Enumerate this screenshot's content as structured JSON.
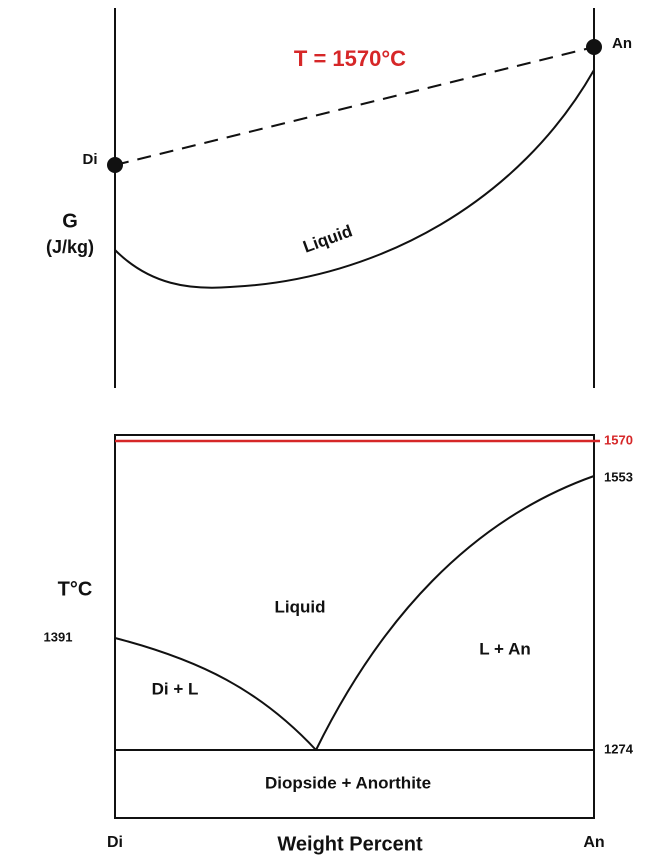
{
  "top_panel": {
    "title": "T = 1570°C",
    "y_label": [
      "G",
      "(J/kg)"
    ],
    "end_labels": [
      "Di",
      "An"
    ],
    "curve_label": "Liquid"
  },
  "bottom_panel": {
    "y_label": "T°C",
    "x_label": "Weight Percent",
    "end_labels": [
      "Di",
      "An"
    ],
    "temperatures": [
      "1570",
      "1553",
      "1391",
      "1274"
    ],
    "fields": [
      "Liquid",
      "L + An",
      "Di + L",
      "Diopside + Anorthite"
    ]
  }
}
